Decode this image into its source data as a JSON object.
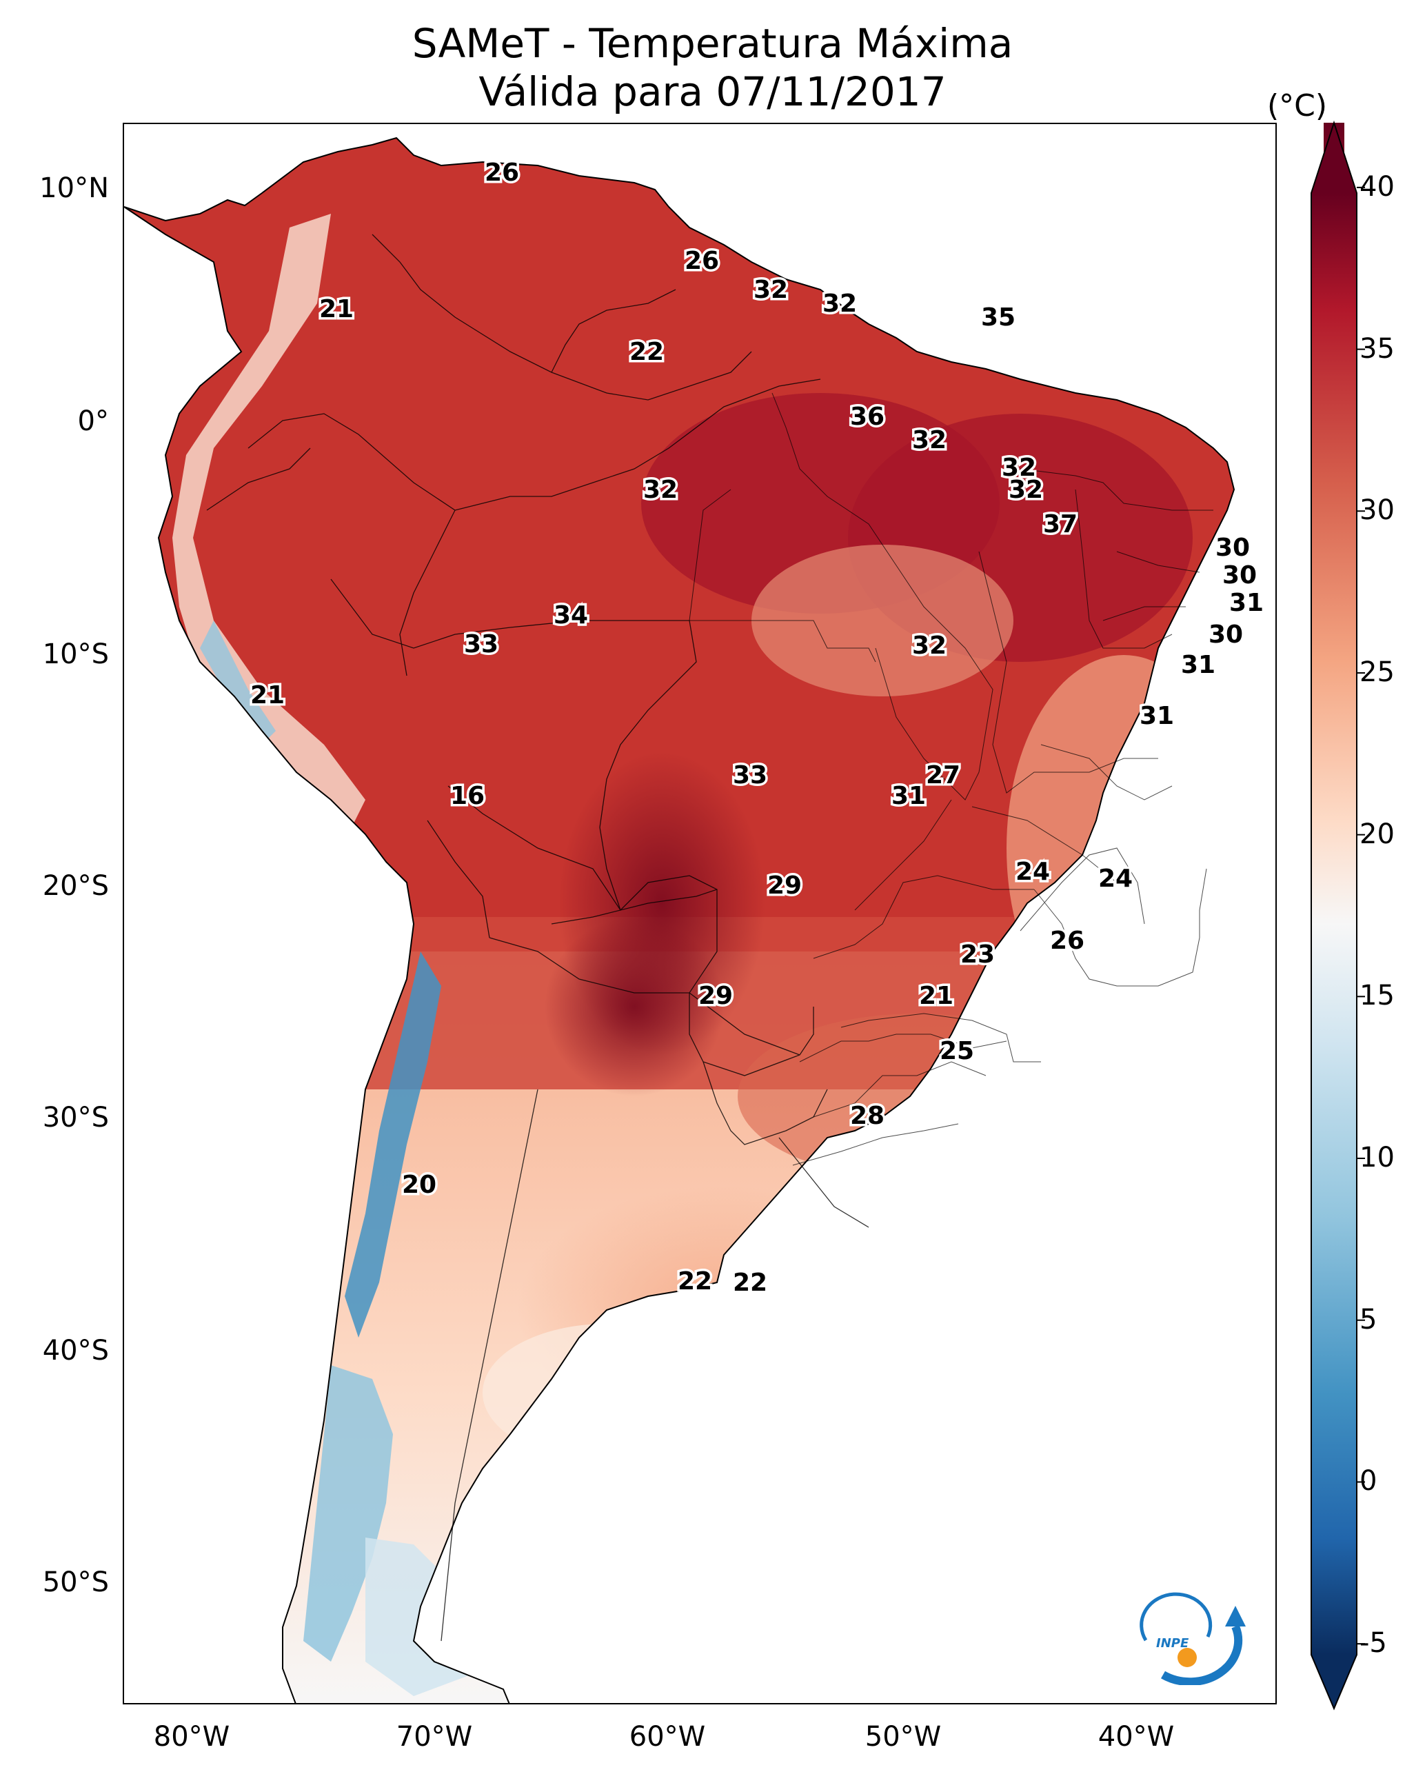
{
  "title": {
    "line1": "SAMeT - Temperatura Máxima",
    "line2": "Válida para 07/11/2017"
  },
  "colorbar": {
    "unit": "(°C)",
    "ticks": [
      "40",
      "35",
      "30",
      "25",
      "20",
      "15",
      "10",
      "5",
      "0",
      "-5"
    ],
    "range": [
      -7,
      42
    ],
    "colors": [
      "#0a2c5e",
      "#2166ac",
      "#4393c3",
      "#92c5de",
      "#d1e5f0",
      "#f7f7f7",
      "#fddbc7",
      "#f4a582",
      "#d6604d",
      "#b2182b",
      "#67001f"
    ]
  },
  "axes": {
    "lat_labels": [
      "10°N",
      "0°",
      "10°S",
      "20°S",
      "30°S",
      "40°S",
      "50°S"
    ],
    "lon_labels": [
      "80°W",
      "70°W",
      "60°W",
      "50°W",
      "40°W"
    ]
  },
  "temperature_labels": [
    "26",
    "21",
    "26",
    "32",
    "32",
    "35",
    "22",
    "36",
    "32",
    "32",
    "32",
    "32",
    "37",
    "30",
    "30",
    "31",
    "34",
    "33",
    "32",
    "30",
    "21",
    "31",
    "31",
    "33",
    "27",
    "31",
    "16",
    "24",
    "24",
    "29",
    "26",
    "23",
    "29",
    "21",
    "25",
    "28",
    "20",
    "22",
    "22"
  ],
  "logo": {
    "text": "INPE"
  },
  "colors": {
    "land_hot": "#b2182b",
    "land_warm": "#d6604d",
    "land_mild": "#f4a582",
    "land_cool": "#fddbc7",
    "andes_cold": "#92c5de",
    "very_hot": "#7a0a1e"
  }
}
